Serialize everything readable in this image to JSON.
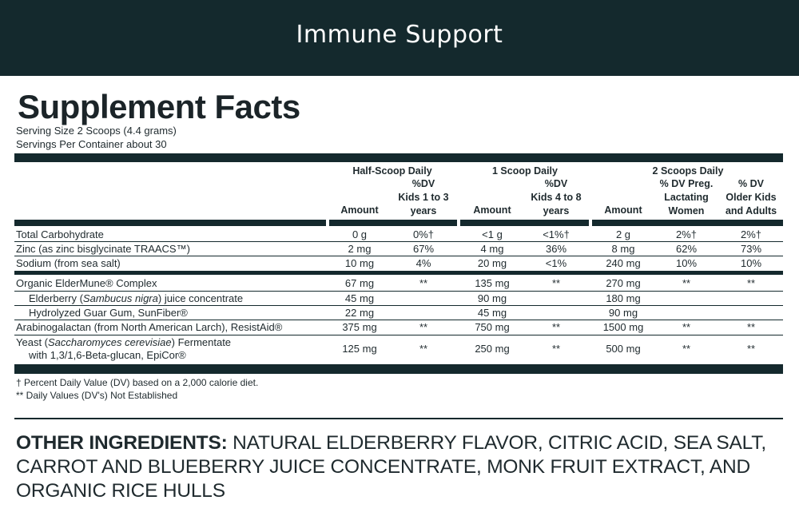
{
  "banner": {
    "title": "Immune Support"
  },
  "facts": {
    "title": "Supplement Facts",
    "serving_size": "Serving Size 2 Scoops (4.4 grams)",
    "servings_per_container": "Servings Per Container about 30"
  },
  "groups": {
    "half": {
      "title": "Half-Scoop Daily",
      "amount": "Amount",
      "dv": [
        "%DV",
        "Kids 1 to 3",
        "years"
      ]
    },
    "one": {
      "title": "1 Scoop Daily",
      "amount": "Amount",
      "dv": [
        "%DV",
        "Kids 4 to 8",
        "years"
      ]
    },
    "two": {
      "title": "2 Scoops Daily",
      "amount": "Amount",
      "dv1": [
        "% DV Preg.",
        "Lactating",
        "Women"
      ],
      "dv2": [
        "% DV",
        "Older Kids",
        "and Adults"
      ]
    }
  },
  "rows": {
    "carb": {
      "name": "Total Carbohydrate",
      "v": [
        "0 g",
        "0%†",
        "<1 g",
        "<1%†",
        "2 g",
        "2%†",
        "2%†"
      ]
    },
    "zinc": {
      "name": "Zinc (as zinc bisglycinate TRAACS™)",
      "v": [
        "2 mg",
        "67%",
        "4 mg",
        "36%",
        "8 mg",
        "62%",
        "73%"
      ]
    },
    "sodium": {
      "name": "Sodium (from sea salt)",
      "v": [
        "10 mg",
        "4%",
        "20 mg",
        "<1%",
        "240 mg",
        "10%",
        "10%"
      ]
    },
    "eldermune": {
      "name": "Organic ElderMune® Complex",
      "v": [
        "67 mg",
        "**",
        "135 mg",
        "**",
        "270 mg",
        "**",
        "**"
      ]
    },
    "elderberry": {
      "name_pre": "Elderberry (",
      "name_italic": "Sambucus nigra",
      "name_post": ") juice concentrate",
      "v": [
        "45 mg",
        "",
        "90 mg",
        "",
        "180 mg",
        "",
        ""
      ]
    },
    "guar": {
      "name": "Hydrolyzed Guar Gum, SunFiber®",
      "v": [
        "22 mg",
        "",
        "45 mg",
        "",
        "90 mg",
        "",
        ""
      ]
    },
    "arabino": {
      "name": "Arabinogalactan (from North American Larch), ResistAid®",
      "v": [
        "375 mg",
        "**",
        "750 mg",
        "**",
        "1500 mg",
        "**",
        "**"
      ]
    },
    "yeast": {
      "name_pre": "Yeast (",
      "name_italic": "Saccharomyces cerevisiae",
      "name_post": ") Fermentate",
      "name_line2": "with 1,3/1,6-Beta-glucan, EpiCor®",
      "v": [
        "125 mg",
        "**",
        "250 mg",
        "**",
        "500 mg",
        "**",
        "**"
      ]
    }
  },
  "footnotes": {
    "dv": "† Percent Daily Value (DV) based on a 2,000 calorie diet.",
    "not_established": "** Daily Values (DV's) Not Established"
  },
  "other_ingredients": {
    "label": "OTHER INGREDIENTS:",
    "text": " NATURAL ELDERBERRY FLAVOR, CITRIC ACID, SEA SALT, CARROT AND BLUEBERRY JUICE CONCENTRATE, MONK FRUIT EXTRACT, AND ORGANIC RICE HULLS"
  }
}
